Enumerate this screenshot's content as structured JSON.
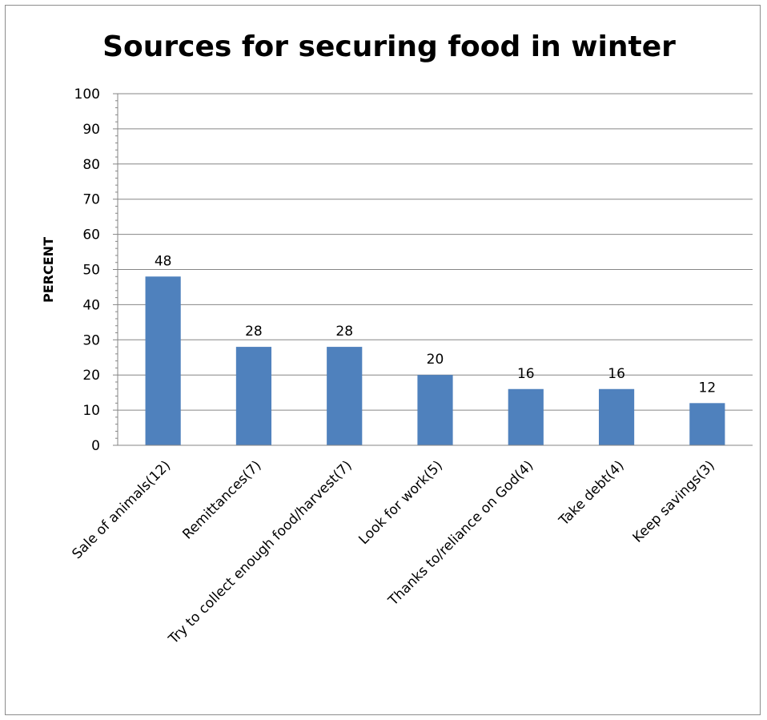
{
  "chart_data": {
    "type": "bar",
    "title": "Sources for securing food in winter",
    "xlabel": "",
    "ylabel": "PERCENT",
    "ylim": [
      0,
      100
    ],
    "yticks": [
      "0",
      "10",
      "20",
      "30",
      "40",
      "50",
      "60",
      "70",
      "80",
      "90",
      "100"
    ],
    "grid": true,
    "legend": "none",
    "bar_color": "#4F81BD",
    "categories": [
      "Sale of animals(12)",
      "Remittances(7)",
      "Try to collect enough food/harvest(7)",
      "Look for work(5)",
      "Thanks to/reliance on God(4)",
      "Take debt(4)",
      "Keep savings(3)"
    ],
    "values": [
      48,
      28,
      28,
      20,
      16,
      16,
      12
    ],
    "data_labels": [
      "48",
      "28",
      "28",
      "20",
      "16",
      "16",
      "12"
    ]
  }
}
